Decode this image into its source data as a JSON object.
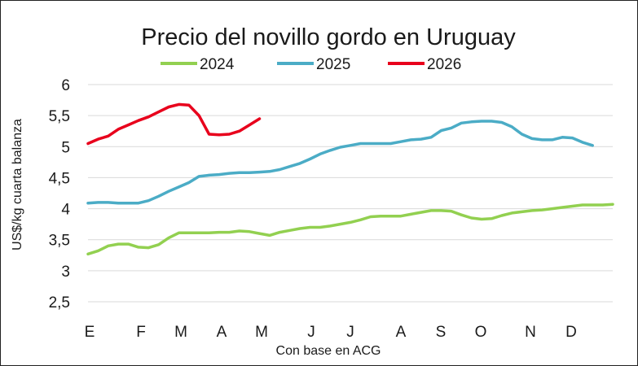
{
  "chart_data": {
    "type": "line",
    "title": "Precio del novillo gordo en Uruguay",
    "xlabel": "Con base en ACG",
    "ylabel": "US$/kg cuarta balanza",
    "ylim": [
      2.5,
      6
    ],
    "yticks": [
      "2,5",
      "3",
      "3,5",
      "4",
      "4,5",
      "5",
      "5,5",
      "6"
    ],
    "grid": true,
    "legend_position": "top",
    "categories": [
      "E",
      "F",
      "M",
      "A",
      "M",
      "J",
      "J",
      "A",
      "S",
      "O",
      "N",
      "D"
    ],
    "x_unit": "week",
    "x_range": [
      1,
      53
    ],
    "series": [
      {
        "name": "2024",
        "color": "#92d050",
        "x": [
          1,
          2,
          3,
          4,
          5,
          6,
          7,
          8,
          9,
          10,
          11,
          12,
          13,
          14,
          15,
          16,
          17,
          18,
          19,
          20,
          21,
          22,
          23,
          24,
          25,
          26,
          27,
          28,
          29,
          30,
          31,
          32,
          33,
          34,
          35,
          36,
          37,
          38,
          39,
          40,
          41,
          42,
          43,
          44,
          45,
          46,
          47,
          48,
          49,
          50,
          51,
          52,
          53
        ],
        "values": [
          3.27,
          3.32,
          3.4,
          3.43,
          3.43,
          3.38,
          3.37,
          3.42,
          3.53,
          3.61,
          3.61,
          3.61,
          3.61,
          3.62,
          3.62,
          3.64,
          3.63,
          3.6,
          3.57,
          3.62,
          3.65,
          3.68,
          3.7,
          3.7,
          3.72,
          3.75,
          3.78,
          3.82,
          3.87,
          3.88,
          3.88,
          3.88,
          3.91,
          3.94,
          3.97,
          3.97,
          3.96,
          3.9,
          3.85,
          3.83,
          3.84,
          3.89,
          3.93,
          3.95,
          3.97,
          3.98,
          4.0,
          4.02,
          4.04,
          4.06,
          4.06,
          4.06,
          4.07
        ]
      },
      {
        "name": "2025",
        "color": "#4bacc6",
        "x": [
          1,
          2,
          3,
          4,
          5,
          6,
          7,
          8,
          9,
          10,
          11,
          12,
          13,
          14,
          15,
          16,
          17,
          18,
          19,
          20,
          21,
          22,
          23,
          24,
          25,
          26,
          27,
          28,
          29,
          30,
          31,
          32,
          33,
          34,
          35,
          36,
          37,
          38,
          39,
          40,
          41,
          42,
          43,
          44,
          45,
          46,
          47,
          48,
          49,
          50,
          51
        ],
        "values": [
          4.09,
          4.1,
          4.1,
          4.09,
          4.09,
          4.09,
          4.13,
          4.2,
          4.28,
          4.35,
          4.42,
          4.52,
          4.54,
          4.55,
          4.57,
          4.58,
          4.58,
          4.59,
          4.6,
          4.63,
          4.68,
          4.73,
          4.8,
          4.88,
          4.94,
          4.99,
          5.02,
          5.05,
          5.05,
          5.05,
          5.05,
          5.08,
          5.11,
          5.12,
          5.15,
          5.26,
          5.3,
          5.38,
          5.4,
          5.41,
          5.41,
          5.39,
          5.32,
          5.2,
          5.13,
          5.11,
          5.11,
          5.15,
          5.14,
          5.07,
          5.02
        ]
      },
      {
        "name": "2026",
        "color": "#e8001c",
        "x": [
          1,
          2,
          3,
          4,
          5,
          6,
          7,
          8,
          9,
          10,
          11,
          12,
          13,
          14,
          15,
          16,
          17,
          18
        ],
        "values": [
          5.05,
          5.12,
          5.17,
          5.28,
          5.35,
          5.42,
          5.48,
          5.56,
          5.64,
          5.68,
          5.67,
          5.5,
          5.2,
          5.19,
          5.2,
          5.25,
          5.35,
          5.45
        ]
      }
    ]
  }
}
